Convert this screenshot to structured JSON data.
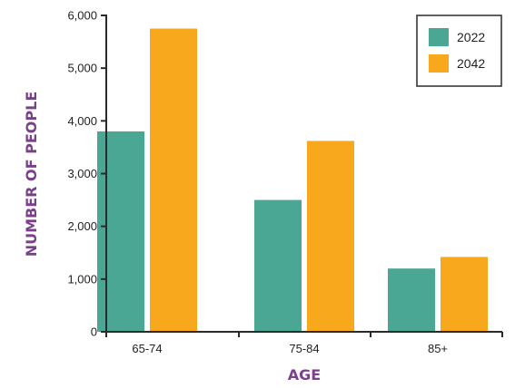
{
  "chart_data": {
    "type": "bar",
    "title": "",
    "xlabel": "AGE",
    "ylabel": "NUMBER OF PEOPLE",
    "categories": [
      "65-74",
      "75-84",
      "85+"
    ],
    "series": [
      {
        "name": "2022",
        "color": "#4aa793",
        "values": [
          3800,
          2500,
          1200
        ]
      },
      {
        "name": "2042",
        "color": "#f8a81c",
        "values": [
          5750,
          3620,
          1420
        ]
      }
    ],
    "ylim": [
      0,
      6000
    ],
    "yticks": [
      0,
      1000,
      2000,
      3000,
      4000,
      5000,
      6000
    ],
    "ytick_labels": [
      "0",
      "1,000",
      "2,000",
      "3,000",
      "4,000",
      "5,000",
      "6,000"
    ],
    "grid": false,
    "legend_position": "top-right",
    "axis_title_color": "#7b3f8c"
  }
}
